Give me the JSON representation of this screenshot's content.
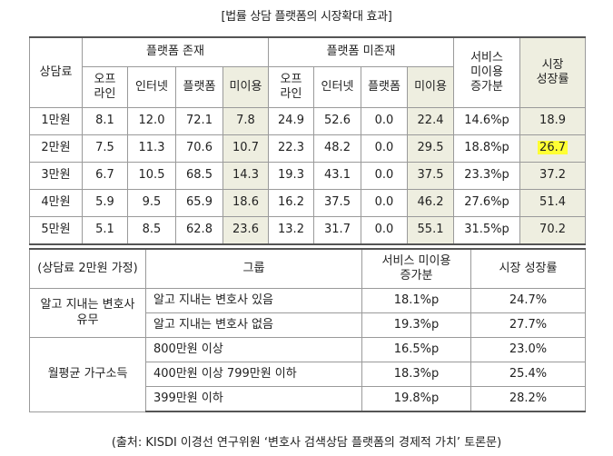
{
  "title": "[법률 상담 플랫폼의 시장확대 효과]",
  "table1": {
    "h_fee": "상담료",
    "h_exist": "플랫폼 존재",
    "h_nonexist": "플랫폼 미존재",
    "h_increase": "서비스\n미이용\n증가분",
    "h_growth": "시장\n성장률",
    "sub": [
      "오프\n라인",
      "인터넷",
      "플랫폼",
      "미이용",
      "오프\n라인",
      "인터넷",
      "플랫폼",
      "미이용"
    ],
    "rows": [
      [
        "1만원",
        "8.1",
        "12.0",
        "72.1",
        "7.8",
        "24.9",
        "52.6",
        "0.0",
        "22.4",
        "14.6%p",
        "18.9"
      ],
      [
        "2만원",
        "7.5",
        "11.3",
        "70.6",
        "10.7",
        "22.3",
        "48.2",
        "0.0",
        "29.5",
        "18.8%p",
        "26.7"
      ],
      [
        "3만원",
        "6.7",
        "10.5",
        "68.5",
        "14.3",
        "19.3",
        "43.1",
        "0.0",
        "37.5",
        "23.3%p",
        "37.2"
      ],
      [
        "4만원",
        "5.9",
        "9.5",
        "65.9",
        "18.6",
        "16.2",
        "37.5",
        "0.0",
        "46.2",
        "27.6%p",
        "51.4"
      ],
      [
        "5만원",
        "5.1",
        "8.5",
        "62.8",
        "23.6",
        "13.2",
        "31.7",
        "0.0",
        "55.1",
        "31.5%p",
        "70.2"
      ]
    ]
  },
  "table2": {
    "h_cond": "(상담료 2만원 가정)",
    "h_group": "그룹",
    "h_increase": "서비스 미이용\n증가분",
    "h_growth": "시장 성장률",
    "cat1": "알고 지내는 변호사\n유무",
    "cat2": "월평균 가구소득",
    "rows": [
      [
        "알고 지내는 변호사 있음",
        "18.1%p",
        "24.7%"
      ],
      [
        "알고 지내는 변호사 없음",
        "19.3%p",
        "27.7%"
      ],
      [
        "800만원 이상",
        "16.5%p",
        "23.0%"
      ],
      [
        "400만원 이상 799만원 이하",
        "18.3%p",
        "25.4%"
      ],
      [
        "399만원 이하",
        "19.8%p",
        "28.2%"
      ]
    ]
  },
  "source": "(출처: KISDI 이경선 연구위원 ‘변호사 검색상담 플랫폼의 경제적 가치’ 토론문)"
}
